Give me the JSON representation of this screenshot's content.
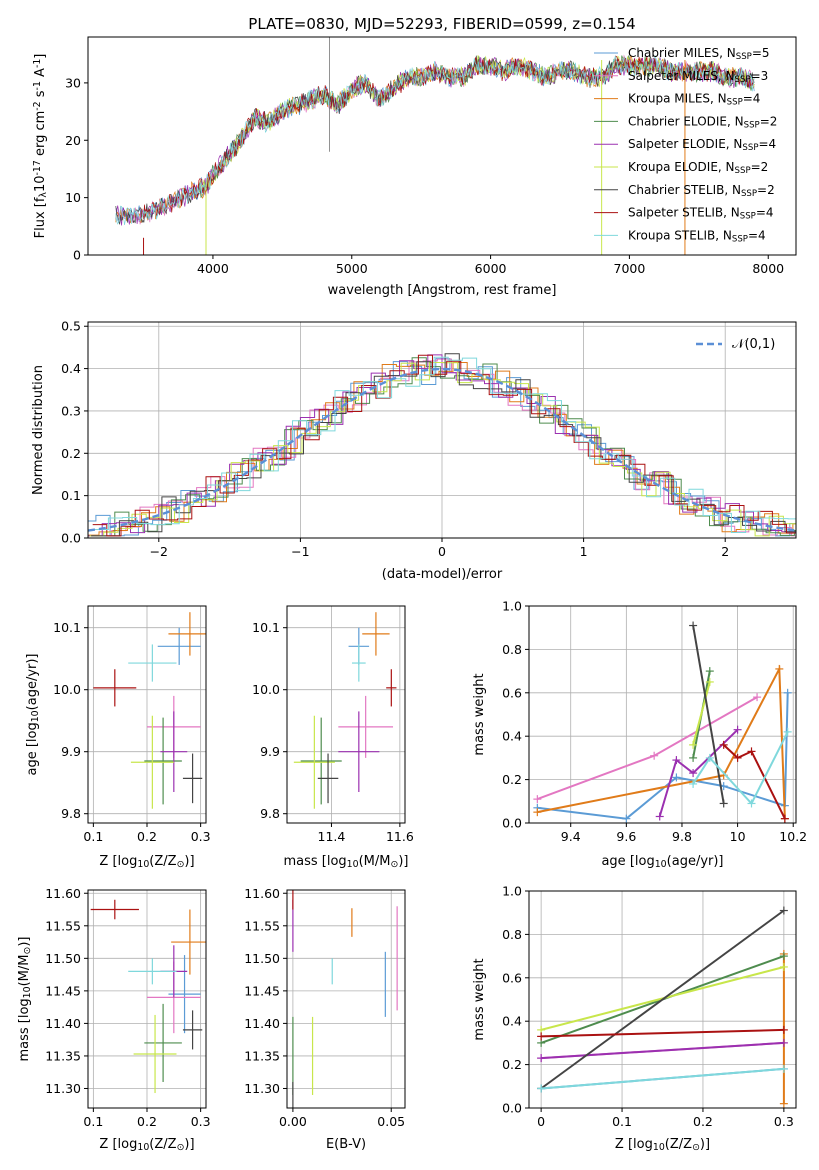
{
  "figure": {
    "title": "PLATE=0830, MJD=52293, FIBERID=0599, z=0.154"
  },
  "models": [
    {
      "name": "Chabrier MILES, N$_{SSP}$=5",
      "color": "#5b9bd5"
    },
    {
      "name": "Salpeter MILES, N$_{SSP}$=3",
      "color": "#e377c2"
    },
    {
      "name": "Kroupa MILES, N$_{SSP}$=4",
      "color": "#e07b19"
    },
    {
      "name": "Chabrier ELODIE, N$_{SSP}$=2",
      "color": "#4e8c4e"
    },
    {
      "name": "Salpeter ELODIE, N$_{SSP}$=4",
      "color": "#9b30b0"
    },
    {
      "name": "Kroupa ELODIE, N$_{SSP}$=2",
      "color": "#c8e64b"
    },
    {
      "name": "Chabrier STELIB, N$_{SSP}$=2",
      "color": "#444444"
    },
    {
      "name": "Salpeter STELIB, N$_{SSP}$=4",
      "color": "#aa1111"
    },
    {
      "name": "Kroupa STELIB, N$_{SSP}$=4",
      "color": "#7fd8dc"
    }
  ],
  "chart_data": [
    {
      "id": "spectrum",
      "type": "line",
      "xlabel": "wavelength [Angstrom, rest frame]",
      "ylabel": "Flux [f$_\\lambda$10$^{-17}$ erg cm$^{-2}$ s$^{-1}$ A$^{-1}$]",
      "xlim": [
        3100,
        8200
      ],
      "ylim": [
        0,
        38
      ],
      "xticks": [
        4000,
        5000,
        6000,
        7000,
        8000
      ],
      "yticks": [
        0,
        10,
        20,
        30
      ],
      "grid": false,
      "legend": "upper-right",
      "x": [
        3300,
        3500,
        3700,
        3850,
        3950,
        4000,
        4100,
        4200,
        4300,
        4400,
        4500,
        4600,
        4700,
        4800,
        4900,
        5000,
        5100,
        5200,
        5300,
        5400,
        5500,
        5600,
        5700,
        5800,
        5900,
        6000,
        6100,
        6200,
        6300,
        6400,
        6500,
        6600,
        6700,
        6800,
        6900,
        7000,
        7100,
        7200,
        7300,
        7400,
        7500,
        7600,
        7700,
        7800,
        7900
      ],
      "y": [
        7,
        7,
        9,
        11,
        12,
        14,
        17,
        20,
        24,
        23,
        25,
        26,
        27,
        28,
        26,
        29,
        30,
        27,
        29,
        31,
        31,
        32,
        31,
        31,
        33,
        33,
        32,
        33,
        32,
        31,
        32,
        32,
        31,
        31,
        33,
        33,
        33,
        33,
        32,
        32,
        32,
        32,
        31,
        31,
        30
      ]
    },
    {
      "id": "residuals",
      "type": "line",
      "xlabel": "(data-model)/error",
      "ylabel": "Normed distribution",
      "xlim": [
        -2.5,
        2.5
      ],
      "ylim": [
        0,
        0.51
      ],
      "xticks": [
        -2,
        -1,
        0,
        1,
        2
      ],
      "yticks": [
        0.0,
        0.1,
        0.2,
        0.3,
        0.4,
        0.5
      ],
      "grid": true,
      "legend": "upper-right",
      "series": [
        {
          "name": "$\\mathcal{N}(0,1)$",
          "style": "dashed",
          "color": "#5b8fd6"
        }
      ]
    },
    {
      "id": "age_vs_Z",
      "type": "scatter",
      "xlabel": "Z [log$_{10}$(Z/Z$_\\odot$)]",
      "ylabel": "age  [log$_{10}$(age/yr)]",
      "xlim": [
        0.09,
        0.31
      ],
      "ylim": [
        9.785,
        10.135
      ],
      "xticks": [
        0.1,
        0.2,
        0.3
      ],
      "yticks": [
        9.8,
        9.9,
        10.0,
        10.1
      ],
      "grid": true,
      "points": [
        {
          "model": 0,
          "x": 0.26,
          "y": 10.07,
          "xerr": 0.04,
          "yerr": 0.03
        },
        {
          "model": 1,
          "x": 0.25,
          "y": 9.94,
          "xerr": 0.05,
          "yerr": 0.05
        },
        {
          "model": 2,
          "x": 0.28,
          "y": 10.09,
          "xerr": 0.04,
          "yerr": 0.035
        },
        {
          "model": 3,
          "x": 0.23,
          "y": 9.885,
          "xerr": 0.035,
          "yerr": 0.07
        },
        {
          "model": 4,
          "x": 0.25,
          "y": 9.9,
          "xerr": 0.025,
          "yerr": 0.065
        },
        {
          "model": 5,
          "x": 0.21,
          "y": 9.883,
          "xerr": 0.04,
          "yerr": 0.075
        },
        {
          "model": 6,
          "x": 0.285,
          "y": 9.857,
          "xerr": 0.018,
          "yerr": 0.04
        },
        {
          "model": 7,
          "x": 0.14,
          "y": 10.003,
          "xerr": 0.04,
          "yerr": 0.03
        },
        {
          "model": 8,
          "x": 0.21,
          "y": 10.043,
          "xerr": 0.045,
          "yerr": 0.03
        }
      ]
    },
    {
      "id": "age_vs_mass",
      "type": "scatter",
      "xlabel": "mass [log$_{10}$(M/M$_\\odot$)]",
      "ylabel": "",
      "xlim": [
        11.27,
        11.615
      ],
      "ylim": [
        9.785,
        10.135
      ],
      "xticks": [
        11.4,
        11.6
      ],
      "yticks": [
        9.8,
        9.9,
        10.0,
        10.1
      ],
      "grid": true,
      "points": [
        {
          "model": 0,
          "x": 11.48,
          "y": 10.07,
          "xerr": 0.03,
          "yerr": 0.03
        },
        {
          "model": 1,
          "x": 11.5,
          "y": 9.94,
          "xerr": 0.08,
          "yerr": 0.05
        },
        {
          "model": 2,
          "x": 11.53,
          "y": 10.09,
          "xerr": 0.04,
          "yerr": 0.035
        },
        {
          "model": 3,
          "x": 11.37,
          "y": 9.885,
          "xerr": 0.06,
          "yerr": 0.07
        },
        {
          "model": 4,
          "x": 11.48,
          "y": 9.9,
          "xerr": 0.06,
          "yerr": 0.065
        },
        {
          "model": 5,
          "x": 11.35,
          "y": 9.883,
          "xerr": 0.06,
          "yerr": 0.075
        },
        {
          "model": 6,
          "x": 11.39,
          "y": 9.857,
          "xerr": 0.03,
          "yerr": 0.04
        },
        {
          "model": 7,
          "x": 11.575,
          "y": 10.003,
          "xerr": 0.015,
          "yerr": 0.03
        },
        {
          "model": 8,
          "x": 11.48,
          "y": 10.043,
          "xerr": 0.02,
          "yerr": 0.03
        }
      ]
    },
    {
      "id": "weight_vs_age",
      "type": "line",
      "xlabel": "age  [log$_{10}$(age/yr)]",
      "ylabel": "mass weight",
      "xlim": [
        9.25,
        10.21
      ],
      "ylim": [
        0,
        1.0
      ],
      "xticks": [
        9.4,
        9.6,
        9.8,
        10.0,
        10.2
      ],
      "yticks": [
        0.0,
        0.2,
        0.4,
        0.6,
        0.8,
        1.0
      ],
      "grid": true,
      "series": [
        {
          "model": 0,
          "x": [
            9.28,
            9.6,
            9.78,
            9.95,
            10.17,
            10.18
          ],
          "y": [
            0.07,
            0.02,
            0.21,
            0.17,
            0.08,
            0.6
          ]
        },
        {
          "model": 1,
          "x": [
            9.28,
            9.7,
            10.07
          ],
          "y": [
            0.11,
            0.31,
            0.58
          ]
        },
        {
          "model": 2,
          "x": [
            9.28,
            9.95,
            10.15,
            10.17
          ],
          "y": [
            0.05,
            0.22,
            0.71,
            0.02
          ]
        },
        {
          "model": 3,
          "x": [
            9.84,
            9.9
          ],
          "y": [
            0.3,
            0.7
          ]
        },
        {
          "model": 4,
          "x": [
            9.72,
            9.78,
            9.84,
            10.0
          ],
          "y": [
            0.03,
            0.29,
            0.23,
            0.43
          ]
        },
        {
          "model": 5,
          "x": [
            9.84,
            9.9
          ],
          "y": [
            0.36,
            0.65
          ]
        },
        {
          "model": 6,
          "x": [
            9.84,
            9.95
          ],
          "y": [
            0.91,
            0.09
          ]
        },
        {
          "model": 7,
          "x": [
            9.95,
            10.0,
            10.05,
            10.17
          ],
          "y": [
            0.36,
            0.3,
            0.33,
            0.02
          ]
        },
        {
          "model": 8,
          "x": [
            9.84,
            9.9,
            10.05,
            10.18
          ],
          "y": [
            0.18,
            0.3,
            0.09,
            0.42
          ]
        }
      ]
    },
    {
      "id": "mass_vs_Z",
      "type": "scatter",
      "xlabel": "Z [log$_{10}$(Z/Z$_\\odot$)]",
      "ylabel": "mass [log$_{10}$(M/M$_\\odot$)]",
      "xlim": [
        0.09,
        0.31
      ],
      "ylim": [
        11.27,
        11.605
      ],
      "xticks": [
        0.1,
        0.2,
        0.3
      ],
      "yticks": [
        11.3,
        11.35,
        11.4,
        11.45,
        11.5,
        11.55,
        11.6
      ],
      "grid": true,
      "points": [
        {
          "model": 0,
          "x": 0.27,
          "y": 11.445,
          "xerr": 0.03,
          "yerr": 0.06
        },
        {
          "model": 1,
          "x": 0.25,
          "y": 11.44,
          "xerr": 0.05,
          "yerr": 0.055
        },
        {
          "model": 2,
          "x": 0.28,
          "y": 11.525,
          "xerr": 0.035,
          "yerr": 0.05
        },
        {
          "model": 3,
          "x": 0.23,
          "y": 11.37,
          "xerr": 0.035,
          "yerr": 0.06
        },
        {
          "model": 4,
          "x": 0.25,
          "y": 11.48,
          "xerr": 0.025,
          "yerr": 0.04
        },
        {
          "model": 5,
          "x": 0.215,
          "y": 11.353,
          "xerr": 0.04,
          "yerr": 0.06
        },
        {
          "model": 6,
          "x": 0.285,
          "y": 11.39,
          "xerr": 0.018,
          "yerr": 0.03
        },
        {
          "model": 7,
          "x": 0.14,
          "y": 11.575,
          "xerr": 0.045,
          "yerr": 0.015
        },
        {
          "model": 8,
          "x": 0.21,
          "y": 11.48,
          "xerr": 0.045,
          "yerr": 0.02
        }
      ]
    },
    {
      "id": "mass_vs_ebv",
      "type": "scatter",
      "xlabel": "E(B-V)",
      "ylabel": "",
      "xlim": [
        -0.003,
        0.057
      ],
      "ylim": [
        11.27,
        11.605
      ],
      "xticks": [
        0.0,
        0.05
      ],
      "xticklabels": [
        "0.00",
        "0.05"
      ],
      "yticks": [
        11.3,
        11.35,
        11.4,
        11.45,
        11.5,
        11.55,
        11.6
      ],
      "grid": true,
      "points": [
        {
          "model": 0,
          "x": 0.047,
          "y": 11.46,
          "xerr": 0,
          "yerr": 0.05
        },
        {
          "model": 1,
          "x": 0.053,
          "y": 11.5,
          "xerr": 0,
          "yerr": 0.08
        },
        {
          "model": 2,
          "x": 0.03,
          "y": 11.555,
          "xerr": 0,
          "yerr": 0.022
        },
        {
          "model": 3,
          "x": 0.0,
          "y": 11.35,
          "xerr": 0,
          "yerr": 0.06
        },
        {
          "model": 4,
          "x": 0.0,
          "y": 11.55,
          "xerr": 0,
          "yerr": 0.04
        },
        {
          "model": 5,
          "x": 0.01,
          "y": 11.35,
          "xerr": 0,
          "yerr": 0.06
        },
        {
          "model": 6,
          "x": 0.0,
          "y": 11.29,
          "xerr": 0,
          "yerr": 0.02
        },
        {
          "model": 7,
          "x": 0.0,
          "y": 11.59,
          "xerr": 0,
          "yerr": 0.015
        },
        {
          "model": 8,
          "x": 0.02,
          "y": 11.48,
          "xerr": 0,
          "yerr": 0.02
        }
      ]
    },
    {
      "id": "weight_vs_Z",
      "type": "line",
      "xlabel": "Z [log$_{10}$(Z/Z$_\\odot$)]",
      "ylabel": "mass weight",
      "xlim": [
        -0.015,
        0.315
      ],
      "ylim": [
        0,
        1.0
      ],
      "xticks": [
        0.0,
        0.1,
        0.2,
        0.3
      ],
      "yticks": [
        0.0,
        0.2,
        0.4,
        0.6,
        0.8,
        1.0
      ],
      "grid": true,
      "series": [
        {
          "model": 0,
          "x": [
            0.0,
            0.3
          ],
          "y": [
            0.09,
            0.18
          ]
        },
        {
          "model": 1,
          "x": [
            0.0,
            0.3
          ],
          "y": [
            0.23,
            0.3
          ]
        },
        {
          "model": 2,
          "x": [
            0.3,
            0.3
          ],
          "y": [
            0.71,
            0.02
          ]
        },
        {
          "model": 3,
          "x": [
            0.0,
            0.3
          ],
          "y": [
            0.3,
            0.7
          ]
        },
        {
          "model": 4,
          "x": [
            0.0,
            0.3
          ],
          "y": [
            0.23,
            0.3
          ]
        },
        {
          "model": 5,
          "x": [
            0.0,
            0.3
          ],
          "y": [
            0.36,
            0.65
          ]
        },
        {
          "model": 6,
          "x": [
            0.0,
            0.3
          ],
          "y": [
            0.09,
            0.91
          ]
        },
        {
          "model": 7,
          "x": [
            0.0,
            0.3
          ],
          "y": [
            0.33,
            0.36
          ]
        },
        {
          "model": 8,
          "x": [
            0.0,
            0.3
          ],
          "y": [
            0.09,
            0.18
          ]
        }
      ]
    }
  ]
}
